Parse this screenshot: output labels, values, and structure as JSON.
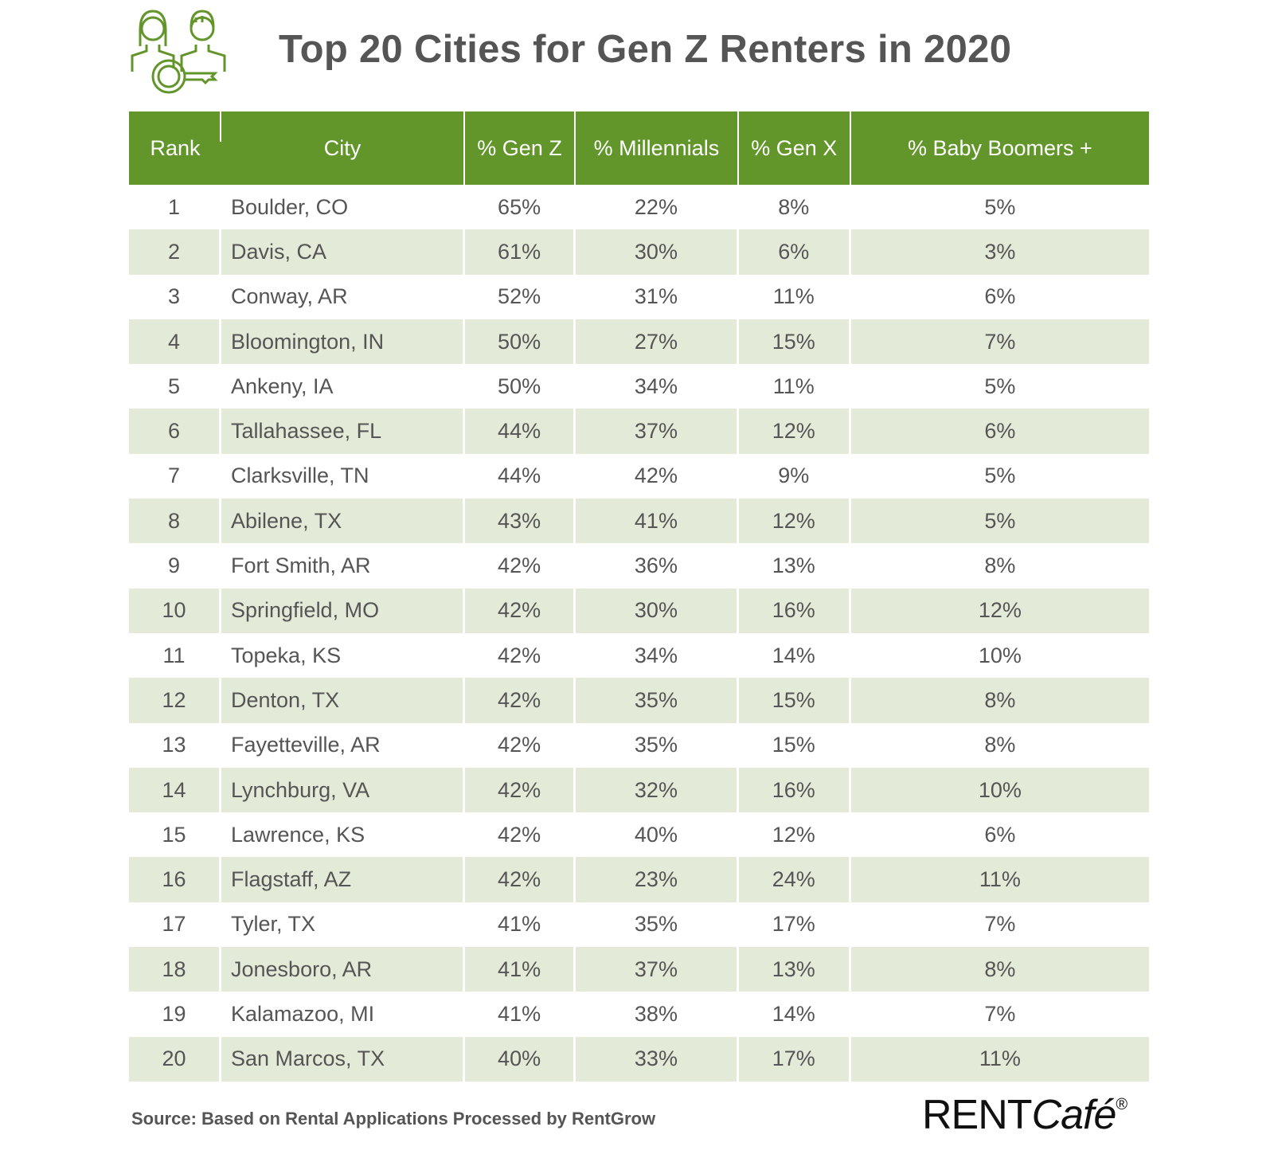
{
  "title": "Top 20 Cities for Gen Z Renters in 2020",
  "colors": {
    "header": "#62952a",
    "alt_row": "#e4ead8",
    "text": "#555555"
  },
  "icon": "renters-with-key-icon",
  "columns": [
    "Rank",
    "City",
    "% Gen Z",
    "% Millennials",
    "% Gen X",
    "% Baby Boomers +"
  ],
  "rows": [
    [
      "1",
      "Boulder, CO",
      "65%",
      "22%",
      "8%",
      "5%"
    ],
    [
      "2",
      "Davis, CA",
      "61%",
      "30%",
      "6%",
      "3%"
    ],
    [
      "3",
      "Conway, AR",
      "52%",
      "31%",
      "11%",
      "6%"
    ],
    [
      "4",
      "Bloomington, IN",
      "50%",
      "27%",
      "15%",
      "7%"
    ],
    [
      "5",
      "Ankeny, IA",
      "50%",
      "34%",
      "11%",
      "5%"
    ],
    [
      "6",
      "Tallahassee, FL",
      "44%",
      "37%",
      "12%",
      "6%"
    ],
    [
      "7",
      "Clarksville, TN",
      "44%",
      "42%",
      "9%",
      "5%"
    ],
    [
      "8",
      "Abilene, TX",
      "43%",
      "41%",
      "12%",
      "5%"
    ],
    [
      "9",
      "Fort Smith, AR",
      "42%",
      "36%",
      "13%",
      "8%"
    ],
    [
      "10",
      "Springfield, MO",
      "42%",
      "30%",
      "16%",
      "12%"
    ],
    [
      "11",
      "Topeka, KS",
      "42%",
      "34%",
      "14%",
      "10%"
    ],
    [
      "12",
      "Denton, TX",
      "42%",
      "35%",
      "15%",
      "8%"
    ],
    [
      "13",
      "Fayetteville, AR",
      "42%",
      "35%",
      "15%",
      "8%"
    ],
    [
      "14",
      "Lynchburg, VA",
      "42%",
      "32%",
      "16%",
      "10%"
    ],
    [
      "15",
      "Lawrence, KS",
      "42%",
      "40%",
      "12%",
      "6%"
    ],
    [
      "16",
      "Flagstaff, AZ",
      "42%",
      "23%",
      "24%",
      "11%"
    ],
    [
      "17",
      "Tyler, TX",
      "41%",
      "35%",
      "17%",
      "7%"
    ],
    [
      "18",
      "Jonesboro, AR",
      "41%",
      "37%",
      "13%",
      "8%"
    ],
    [
      "19",
      "Kalamazoo, MI",
      "41%",
      "38%",
      "14%",
      "7%"
    ],
    [
      "20",
      "San Marcos, TX",
      "40%",
      "33%",
      "17%",
      "11%"
    ]
  ],
  "source": "Source: Based on Rental Applications Processed by RentGrow",
  "logo": {
    "part1": "RENT",
    "part2": "Café",
    "mark": "®"
  }
}
